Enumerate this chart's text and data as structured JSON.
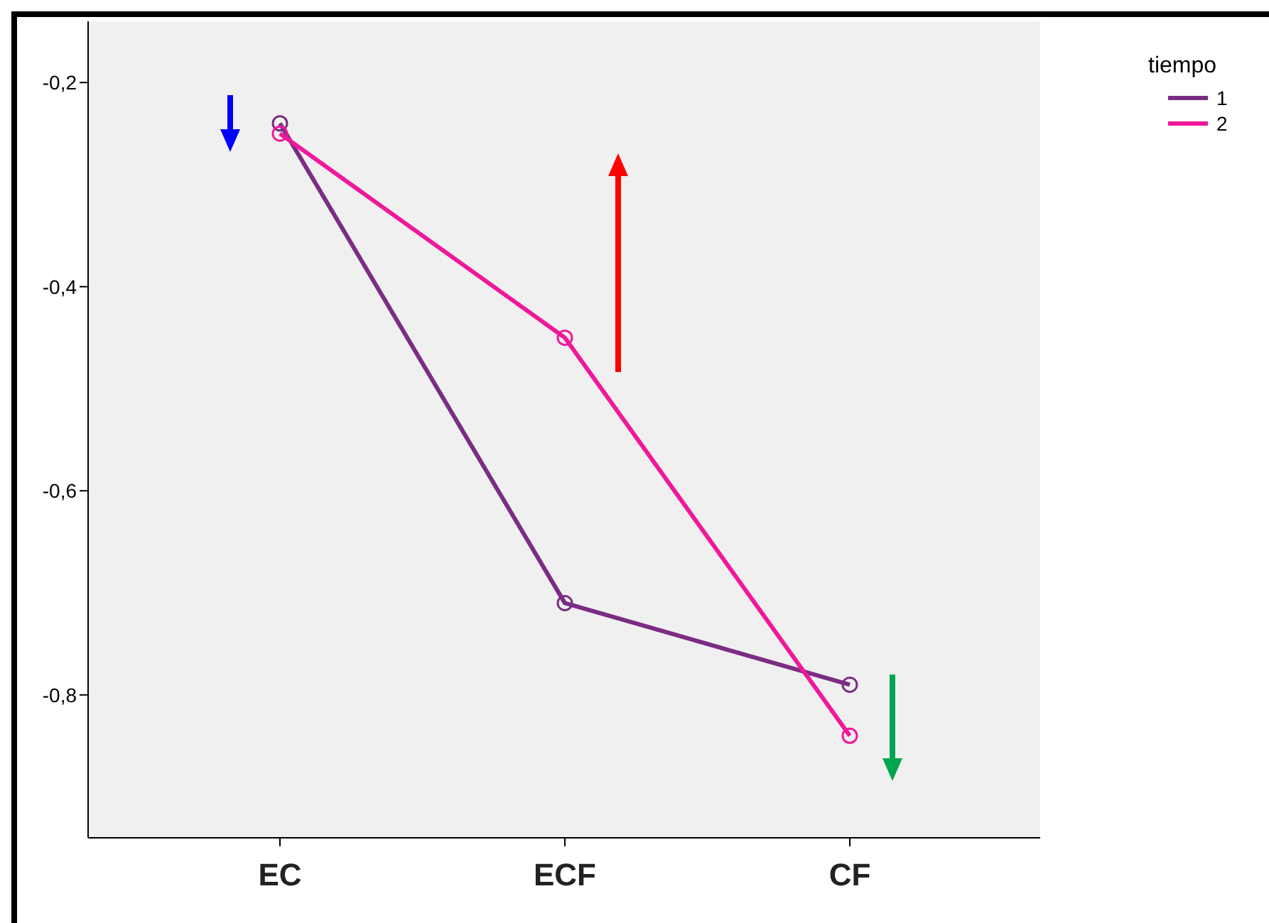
{
  "chart_data": {
    "type": "line",
    "legend_title": "tiempo",
    "categories": [
      "EC",
      "ECF",
      "CF"
    ],
    "series": [
      {
        "name": "1",
        "color": "#7b2c83",
        "values": [
          -0.24,
          -0.71,
          -0.79
        ]
      },
      {
        "name": "2",
        "color": "#f0189a",
        "values": [
          -0.25,
          -0.45,
          -0.84
        ]
      }
    ],
    "ylim": [
      -0.94,
      -0.14
    ],
    "yticks": [
      {
        "value": -0.8,
        "label": "-0,8"
      },
      {
        "value": -0.6,
        "label": "-0,6"
      },
      {
        "value": -0.4,
        "label": "-0,4"
      },
      {
        "value": -0.2,
        "label": "-0,2"
      }
    ],
    "marker": "circle",
    "line_style": "solid",
    "grid": false,
    "legend": "top right"
  }
}
